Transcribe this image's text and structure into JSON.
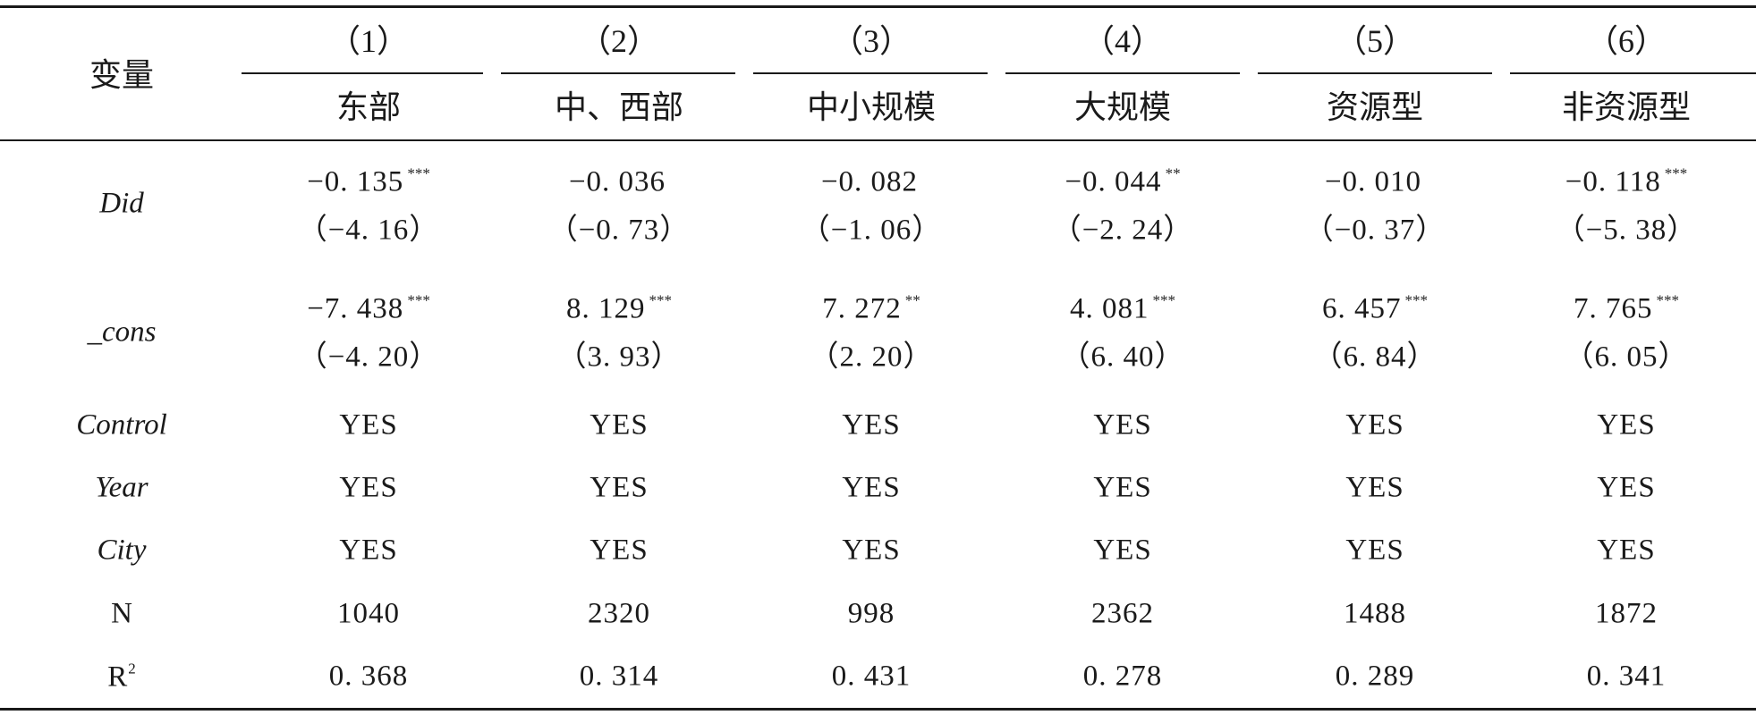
{
  "table": {
    "corner_label": "变量",
    "col_numbers": [
      "（1）",
      "（2）",
      "（3）",
      "（4）",
      "（5）",
      "（6）"
    ],
    "col_names": [
      "东部",
      "中、西部",
      "中小规模",
      "大规模",
      "资源型",
      "非资源型"
    ],
    "rows": {
      "did": {
        "label": "Did",
        "coefs": [
          "−0. 135",
          "−0. 036",
          "−0. 082",
          "−0. 044",
          "−0. 010",
          "−0. 118"
        ],
        "stars": [
          "***",
          "",
          "",
          "**",
          "",
          "***"
        ],
        "tstats": [
          "（−4. 16）",
          "（−0. 73）",
          "（−1. 06）",
          "（−2. 24）",
          "（−0. 37）",
          "（−5. 38）"
        ]
      },
      "cons": {
        "label": "_cons",
        "coefs": [
          "−7. 438",
          "8. 129",
          "7. 272",
          "4. 081",
          "6. 457",
          "7. 765"
        ],
        "stars": [
          "***",
          "***",
          "**",
          "***",
          "***",
          "***"
        ],
        "tstats": [
          "（−4. 20）",
          "（3. 93）",
          "（2. 20）",
          "（6. 40）",
          "（6. 84）",
          "（6. 05）"
        ]
      },
      "control": {
        "label": "Control",
        "values": [
          "YES",
          "YES",
          "YES",
          "YES",
          "YES",
          "YES"
        ]
      },
      "year": {
        "label": "Year",
        "values": [
          "YES",
          "YES",
          "YES",
          "YES",
          "YES",
          "YES"
        ]
      },
      "city": {
        "label": "City",
        "values": [
          "YES",
          "YES",
          "YES",
          "YES",
          "YES",
          "YES"
        ]
      },
      "n": {
        "label": "N",
        "values": [
          "1040",
          "2320",
          "998",
          "2362",
          "1488",
          "1872"
        ]
      },
      "r2": {
        "label": "R",
        "label_sup": "2",
        "values": [
          "0. 368",
          "0. 314",
          "0. 431",
          "0. 278",
          "0. 289",
          "0. 341"
        ]
      }
    }
  }
}
